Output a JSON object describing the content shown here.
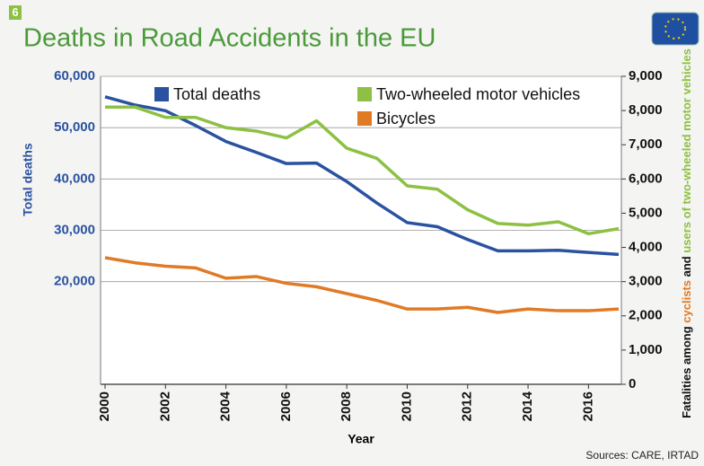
{
  "chart_data": {
    "type": "line",
    "badge": "6",
    "title": "Deaths in Road Accidents in the EU",
    "source": "Sources: CARE, IRTAD",
    "xlabel": "Year",
    "ylabel": "Total deaths",
    "y2label_parts": [
      {
        "text": "Fatalities among ",
        "color": "#111111"
      },
      {
        "text": "cyclists",
        "color": "#e07a25"
      },
      {
        "text": " and ",
        "color": "#111111"
      },
      {
        "text": "users of two-wheeled motor vehicles",
        "color": "#8dc043"
      }
    ],
    "x": [
      2000,
      2001,
      2002,
      2003,
      2004,
      2005,
      2006,
      2007,
      2008,
      2009,
      2010,
      2011,
      2012,
      2013,
      2014,
      2015,
      2016,
      2017
    ],
    "xlim": [
      2000,
      2017
    ],
    "xticks": [
      2000,
      2002,
      2004,
      2006,
      2008,
      2010,
      2012,
      2014,
      2016
    ],
    "ylim": [
      0,
      60000
    ],
    "yticks": [
      {
        "value": 20000,
        "label": "20,000"
      },
      {
        "value": 30000,
        "label": "30,000"
      },
      {
        "value": 40000,
        "label": "40,000"
      },
      {
        "value": 50000,
        "label": "50,000"
      },
      {
        "value": 60000,
        "label": "60,000"
      }
    ],
    "y2lim": [
      0,
      9000
    ],
    "y2ticks": [
      0,
      {
        "value": 1000,
        "label": "1,000"
      },
      {
        "value": 2000,
        "label": "2,000"
      },
      {
        "value": 3000,
        "label": "3,000"
      },
      {
        "value": 4000,
        "label": "4,000"
      },
      {
        "value": 5000,
        "label": "5,000"
      },
      {
        "value": 6000,
        "label": "6,000"
      },
      {
        "value": 7000,
        "label": "7,000"
      },
      {
        "value": 8000,
        "label": "8,000"
      },
      {
        "value": 9000,
        "label": "9,000"
      }
    ],
    "grid": true,
    "series": [
      {
        "name": "Total deaths",
        "color": "#2a52a0",
        "axis": "y",
        "values": [
          56000,
          54400,
          53300,
          50400,
          47300,
          45200,
          43000,
          43100,
          39500,
          35300,
          31500,
          30700,
          28200,
          26000,
          26000,
          26100,
          25700,
          25300
        ]
      },
      {
        "name": "Two-wheeled motor vehicles",
        "color": "#8dc043",
        "axis": "y2",
        "values": [
          8100,
          8100,
          7800,
          7800,
          7500,
          7400,
          7200,
          7700,
          6900,
          6600,
          5800,
          5700,
          5100,
          4700,
          4650,
          4750,
          4400,
          4550
        ]
      },
      {
        "name": "Bicycles",
        "color": "#e07a25",
        "axis": "y2",
        "values": [
          3700,
          3550,
          3450,
          3400,
          3100,
          3150,
          2950,
          2850,
          2650,
          2450,
          2200,
          2200,
          2250,
          2100,
          2200,
          2150,
          2150,
          2200
        ]
      }
    ]
  }
}
